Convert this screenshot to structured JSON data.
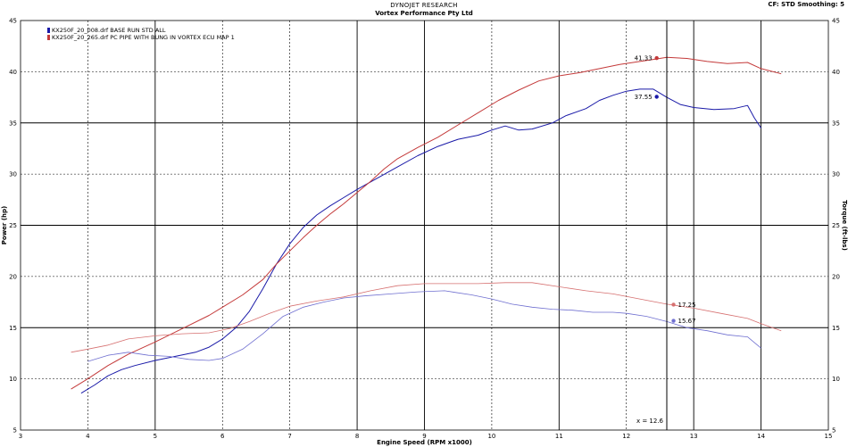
{
  "header": {
    "title": "DYNOJET RESEARCH",
    "subtitle": "Vortex Performance Pty Ltd",
    "config": "CF: STD   Smoothing: 5"
  },
  "chart_data": {
    "type": "line",
    "xlabel": "Engine Speed (RPM x1000)",
    "ylabel_left": "Power (hp)",
    "ylabel_right": "Torque (ft-lbs)",
    "xlim": [
      3,
      15
    ],
    "ylim": [
      5,
      45
    ],
    "x_ticks": [
      3,
      4,
      5,
      6,
      7,
      8,
      9,
      10,
      11,
      12,
      13,
      14,
      15
    ],
    "y_ticks": [
      5,
      10,
      15,
      20,
      25,
      30,
      35,
      40,
      45
    ],
    "grid": true,
    "legend_position": "top-left",
    "cursor_x": 12.6,
    "cursor_label": "x = 12.6",
    "series": [
      {
        "name": "KX250F_20_008.drf BASE RUN STD ALL",
        "color": "#1a1aa8",
        "kind": "power",
        "points": [
          [
            3.9,
            8.6
          ],
          [
            4.1,
            9.4
          ],
          [
            4.3,
            10.3
          ],
          [
            4.5,
            10.9
          ],
          [
            4.7,
            11.3
          ],
          [
            5.0,
            11.8
          ],
          [
            5.3,
            12.2
          ],
          [
            5.6,
            12.6
          ],
          [
            5.8,
            13.1
          ],
          [
            6.0,
            13.9
          ],
          [
            6.2,
            15.0
          ],
          [
            6.4,
            16.6
          ],
          [
            6.6,
            18.8
          ],
          [
            6.8,
            21.2
          ],
          [
            7.0,
            23.2
          ],
          [
            7.2,
            24.8
          ],
          [
            7.4,
            26.0
          ],
          [
            7.6,
            26.9
          ],
          [
            7.8,
            27.7
          ],
          [
            8.0,
            28.5
          ],
          [
            8.3,
            29.6
          ],
          [
            8.6,
            30.7
          ],
          [
            8.9,
            31.8
          ],
          [
            9.2,
            32.7
          ],
          [
            9.5,
            33.4
          ],
          [
            9.8,
            33.8
          ],
          [
            10.0,
            34.3
          ],
          [
            10.2,
            34.7
          ],
          [
            10.4,
            34.3
          ],
          [
            10.6,
            34.4
          ],
          [
            10.9,
            35.0
          ],
          [
            11.1,
            35.7
          ],
          [
            11.4,
            36.4
          ],
          [
            11.6,
            37.2
          ],
          [
            11.8,
            37.7
          ],
          [
            12.0,
            38.1
          ],
          [
            12.2,
            38.3
          ],
          [
            12.4,
            38.3
          ],
          [
            12.6,
            37.5
          ],
          [
            12.8,
            36.8
          ],
          [
            13.0,
            36.5
          ],
          [
            13.3,
            36.3
          ],
          [
            13.6,
            36.4
          ],
          [
            13.8,
            36.7
          ],
          [
            13.9,
            35.5
          ],
          [
            14.0,
            34.5
          ]
        ]
      },
      {
        "name": "KX250F_20_265.drf PC PIPE WITH BUNG IN  VORTEX ECU MAP 1",
        "color": "#c43a3a",
        "kind": "power",
        "points": [
          [
            3.75,
            9.0
          ],
          [
            4.0,
            10.0
          ],
          [
            4.3,
            11.3
          ],
          [
            4.6,
            12.4
          ],
          [
            5.0,
            13.6
          ],
          [
            5.4,
            14.9
          ],
          [
            5.8,
            16.2
          ],
          [
            6.0,
            17.0
          ],
          [
            6.3,
            18.2
          ],
          [
            6.6,
            19.7
          ],
          [
            6.8,
            21.2
          ],
          [
            7.0,
            22.5
          ],
          [
            7.2,
            23.8
          ],
          [
            7.4,
            25.0
          ],
          [
            7.6,
            26.1
          ],
          [
            7.8,
            27.1
          ],
          [
            8.0,
            28.2
          ],
          [
            8.2,
            29.3
          ],
          [
            8.4,
            30.5
          ],
          [
            8.6,
            31.5
          ],
          [
            8.9,
            32.6
          ],
          [
            9.2,
            33.6
          ],
          [
            9.5,
            34.8
          ],
          [
            9.8,
            36.0
          ],
          [
            10.1,
            37.2
          ],
          [
            10.4,
            38.2
          ],
          [
            10.7,
            39.1
          ],
          [
            11.0,
            39.6
          ],
          [
            11.3,
            39.9
          ],
          [
            11.6,
            40.3
          ],
          [
            11.9,
            40.7
          ],
          [
            12.2,
            41.0
          ],
          [
            12.4,
            41.2
          ],
          [
            12.6,
            41.4
          ],
          [
            12.9,
            41.3
          ],
          [
            13.2,
            41.0
          ],
          [
            13.5,
            40.8
          ],
          [
            13.8,
            40.9
          ],
          [
            14.0,
            40.3
          ],
          [
            14.3,
            39.8
          ]
        ]
      },
      {
        "name": "KX250F_20_008.drf BASE RUN STD ALL",
        "color": "#6f6fd0",
        "kind": "torque",
        "points": [
          [
            4.0,
            11.7
          ],
          [
            4.3,
            12.3
          ],
          [
            4.6,
            12.6
          ],
          [
            4.9,
            12.3
          ],
          [
            5.2,
            12.2
          ],
          [
            5.5,
            11.9
          ],
          [
            5.8,
            11.8
          ],
          [
            6.0,
            12.0
          ],
          [
            6.3,
            12.9
          ],
          [
            6.6,
            14.4
          ],
          [
            6.9,
            16.1
          ],
          [
            7.2,
            17.0
          ],
          [
            7.5,
            17.5
          ],
          [
            7.8,
            17.9
          ],
          [
            8.1,
            18.1
          ],
          [
            8.5,
            18.3
          ],
          [
            8.9,
            18.5
          ],
          [
            9.3,
            18.6
          ],
          [
            9.7,
            18.2
          ],
          [
            10.0,
            17.8
          ],
          [
            10.3,
            17.3
          ],
          [
            10.6,
            17.0
          ],
          [
            10.9,
            16.8
          ],
          [
            11.2,
            16.7
          ],
          [
            11.5,
            16.5
          ],
          [
            11.8,
            16.5
          ],
          [
            12.0,
            16.4
          ],
          [
            12.3,
            16.1
          ],
          [
            12.6,
            15.6
          ],
          [
            12.9,
            15.0
          ],
          [
            13.2,
            14.7
          ],
          [
            13.5,
            14.3
          ],
          [
            13.8,
            14.1
          ],
          [
            14.0,
            13.0
          ]
        ]
      },
      {
        "name": "KX250F_20_265.drf PC PIPE WITH BUNG IN  VORTEX ECU MAP 1",
        "color": "#d67070",
        "kind": "torque",
        "points": [
          [
            3.75,
            12.6
          ],
          [
            4.0,
            12.9
          ],
          [
            4.3,
            13.3
          ],
          [
            4.6,
            13.9
          ],
          [
            5.0,
            14.2
          ],
          [
            5.4,
            14.4
          ],
          [
            5.8,
            14.5
          ],
          [
            6.1,
            14.9
          ],
          [
            6.4,
            15.6
          ],
          [
            6.7,
            16.4
          ],
          [
            7.0,
            17.1
          ],
          [
            7.4,
            17.6
          ],
          [
            7.8,
            18.0
          ],
          [
            8.2,
            18.6
          ],
          [
            8.6,
            19.1
          ],
          [
            9.0,
            19.3
          ],
          [
            9.4,
            19.3
          ],
          [
            9.8,
            19.3
          ],
          [
            10.2,
            19.4
          ],
          [
            10.6,
            19.4
          ],
          [
            11.0,
            19.0
          ],
          [
            11.4,
            18.6
          ],
          [
            11.8,
            18.3
          ],
          [
            12.2,
            17.8
          ],
          [
            12.6,
            17.3
          ],
          [
            13.0,
            16.9
          ],
          [
            13.4,
            16.4
          ],
          [
            13.8,
            15.9
          ],
          [
            14.0,
            15.4
          ],
          [
            14.3,
            14.7
          ]
        ]
      }
    ],
    "annotations": [
      {
        "label": "41.33",
        "x": 12.45,
        "y": 41.33,
        "color": "#c43a3a"
      },
      {
        "label": "37.55",
        "x": 12.45,
        "y": 37.55,
        "color": "#1a1aa8"
      },
      {
        "label": "17.25",
        "x": 12.7,
        "y": 17.25,
        "color": "#d67070"
      },
      {
        "label": "15.67",
        "x": 12.7,
        "y": 15.67,
        "color": "#6f6fd0"
      }
    ]
  }
}
